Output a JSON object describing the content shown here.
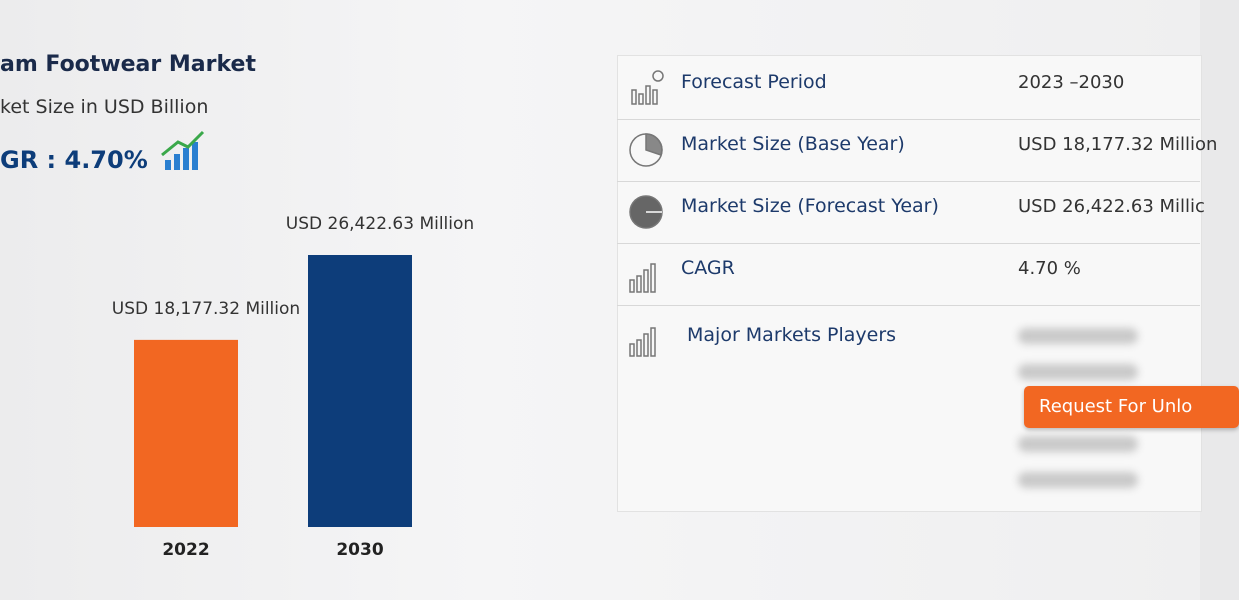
{
  "chart_data": {
    "type": "bar",
    "title": "am Footwear Market",
    "subtitle": "ket Size in USD Billion",
    "annotation": "GR : 4.70%",
    "categories": [
      "2022",
      "2030"
    ],
    "values": [
      18177.32,
      26422.63
    ],
    "value_labels": [
      "USD 18,177.32 Million",
      "USD 26,422.63 Million"
    ],
    "colors": [
      "#f26722",
      "#0d3d7a"
    ]
  },
  "table": {
    "rows": [
      [
        "Forecast Period",
        "2023 –2030"
      ],
      [
        "Market Size (Base Year)",
        "USD 18,177.32 Million"
      ],
      [
        "Market Size (Forecast Year)",
        "USD 26,422.63 Millic"
      ],
      [
        "CAGR",
        "4.70 %"
      ],
      [
        "Major Markets Players"
      ]
    ]
  },
  "button": "Request For Unlo"
}
